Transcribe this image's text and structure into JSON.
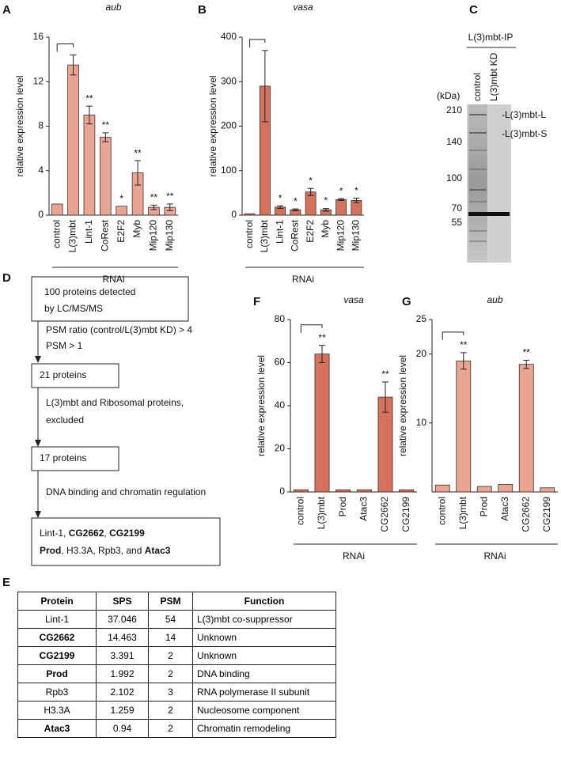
{
  "chart_data": [
    {
      "type": "bar",
      "panel": "A",
      "title": "aub",
      "xlabel": "RNAi",
      "ylabel": "relative expression level",
      "categories": [
        "control",
        "L(3)mbt",
        "Lint-1",
        "CoRest",
        "E2F2",
        "Myb",
        "Mip120",
        "Mip130"
      ],
      "values": [
        1,
        13.5,
        9.0,
        7.0,
        0.8,
        3.8,
        0.7,
        0.7
      ],
      "errors": [
        null,
        0.9,
        0.8,
        0.4,
        null,
        1.1,
        0.2,
        0.3
      ],
      "annotations": [
        null,
        null,
        "**",
        "**",
        "*",
        "**",
        "**",
        "**"
      ],
      "color": "#e9a492",
      "ylim": [
        0,
        16
      ],
      "yticks": [
        0,
        4,
        8,
        12,
        16
      ]
    },
    {
      "type": "bar",
      "panel": "B",
      "title": "vasa",
      "xlabel": "RNAi",
      "ylabel": "relative expression level",
      "categories": [
        "control",
        "L(3)mbt",
        "Lint-1",
        "CoRest",
        "E2F2",
        "Myb",
        "Mip120",
        "Mip130"
      ],
      "values": [
        3,
        290,
        18,
        12,
        52,
        12,
        35,
        33
      ],
      "errors": [
        null,
        80,
        3,
        2,
        8,
        3,
        2,
        5
      ],
      "annotations": [
        null,
        null,
        "*",
        "*",
        "*",
        "*",
        "*",
        "*"
      ],
      "color": "#d4725c",
      "ylim": [
        0,
        400
      ],
      "yticks": [
        0,
        100,
        200,
        300,
        400
      ]
    },
    {
      "type": "bar",
      "panel": "F",
      "title": "vasa",
      "xlabel": "RNAi",
      "ylabel": "relative expression level",
      "categories": [
        "control",
        "L(3)mbt",
        "Prod",
        "Atac3",
        "CG2662",
        "CG2199"
      ],
      "values": [
        1,
        64,
        1,
        1,
        44,
        1
      ],
      "errors": [
        null,
        4,
        null,
        null,
        7,
        null
      ],
      "annotations": [
        null,
        "**",
        null,
        null,
        "**",
        null
      ],
      "color": "#d4725c",
      "ylim": [
        0,
        80
      ],
      "yticks": [
        0,
        20,
        40,
        60,
        80
      ]
    },
    {
      "type": "bar",
      "panel": "G",
      "title": "aub",
      "xlabel": "RNAi",
      "ylabel": "relative expression level",
      "categories": [
        "control",
        "L(3)mbt",
        "Prod",
        "Atac3",
        "CG2662",
        "CG2199"
      ],
      "values": [
        1,
        19,
        0.8,
        1.1,
        18.5,
        0.6
      ],
      "errors": [
        null,
        1.2,
        null,
        null,
        0.6,
        null
      ],
      "annotations": [
        null,
        "**",
        null,
        null,
        "**",
        null
      ],
      "color": "#e9a492",
      "ylim": [
        0,
        25
      ],
      "yticks": [
        10,
        20,
        25
      ]
    }
  ],
  "gel": {
    "panel": "C",
    "title": "L(3)mbt-IP",
    "lanes": [
      "control",
      "L(3)mbt KD"
    ],
    "unit": "(kDa)",
    "markers": [
      210,
      140,
      100,
      70,
      55
    ],
    "bands": [
      "-L(3)mbt-L",
      "-L(3)mbt-S"
    ]
  },
  "flowchart": {
    "panel": "D",
    "boxes": [
      [
        "100 proteins detected",
        "by LC/MS/MS"
      ],
      [
        "21 proteins"
      ],
      [
        "17 proteins"
      ],
      [
        [
          "Lint-1, ",
          "CG2662",
          ", ",
          "CG2199"
        ],
        [
          "Prod",
          ", H3.3A, Rpb3, and ",
          "Atac3"
        ]
      ]
    ],
    "steps": [
      [
        "PSM ratio (control/L(3)mbt KD) > 4",
        "PSM > 1"
      ],
      [
        "L(3)mbt and Ribosomal proteins,",
        "excluded"
      ],
      [
        "DNA binding and chromatin regulation"
      ]
    ]
  },
  "table": {
    "panel": "E",
    "header": [
      "Protein",
      "SPS",
      "PSM",
      "Function"
    ],
    "rows": [
      [
        "Lint-1",
        37.046,
        54,
        "L(3)mbt co-suppressor"
      ],
      [
        "CG2662",
        14.463,
        14,
        "Unknown"
      ],
      [
        "CG2199",
        3.391,
        2,
        "Unknown"
      ],
      [
        "Prod",
        1.992,
        2,
        "DNA binding"
      ],
      [
        "Rpb3",
        2.102,
        3,
        "RNA polymerase II subunit"
      ],
      [
        "H3.3A",
        1.259,
        2,
        "Nucleosome component"
      ],
      [
        "Atac3",
        0.94,
        2,
        "Chromatin remodeling"
      ]
    ]
  }
}
